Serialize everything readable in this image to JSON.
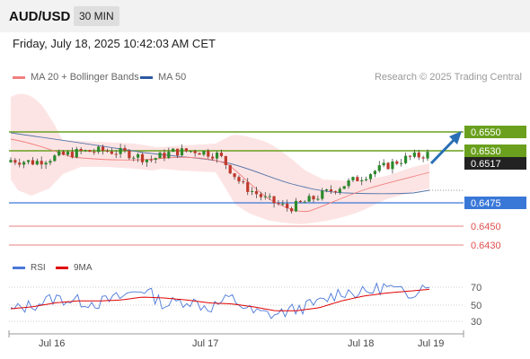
{
  "header": {
    "symbol": "AUD/USD",
    "timeframe": "30 MIN"
  },
  "datetime": "Friday, July 18, 2025 10:42:03 AM CET",
  "legend": {
    "items": [
      {
        "label": "MA 20 + Bollinger Bands",
        "color": "#f08080"
      },
      {
        "label": "MA 50",
        "color": "#2c5aa0"
      }
    ],
    "credit": "Research © 2025 Trading Central"
  },
  "rsi_legend": {
    "items": [
      {
        "label": "RSI",
        "color": "#4a78d8"
      },
      {
        "label": "9MA",
        "color": "#e00000"
      }
    ]
  },
  "colors": {
    "resistance": "#6aa01e",
    "support_primary": "#3a78d8",
    "support_secondary": "#e88080",
    "current": "#222222",
    "arrow": "#2a6fb5"
  },
  "price_tags": {
    "resistance": [
      "0.6550",
      "0.6530"
    ],
    "current": "0.6517",
    "support": [
      "0.6475",
      "0.6450",
      "0.6430"
    ]
  },
  "x_axis_labels": [
    "Jul 16",
    "Jul 17",
    "Jul 18",
    "Jul 19"
  ],
  "rsi_axis_labels": [
    "70",
    "50",
    "30"
  ],
  "chart_data": {
    "type": "line",
    "series": [
      {
        "name": "MA 20 + Bollinger Bands",
        "values": [
          0.6515,
          0.6514,
          0.6515,
          0.6517,
          0.6518,
          0.6518,
          0.6518,
          0.6511,
          0.6505,
          0.6497,
          0.6487,
          0.6483,
          0.6484,
          0.649,
          0.6496,
          0.6502,
          0.6505
        ]
      },
      {
        "name": "MA 50",
        "values": [
          0.6538,
          0.653,
          0.6525,
          0.6522,
          0.652,
          0.6518,
          0.6516,
          0.6513,
          0.6505,
          0.6497,
          0.649,
          0.6486,
          0.6484,
          0.6483,
          0.6483,
          0.6484,
          0.6486
        ]
      }
    ],
    "price_path": [
      0.6512,
      0.651,
      0.6515,
      0.6519,
      0.652,
      0.6518,
      0.6512,
      0.6519,
      0.652,
      0.6516,
      0.649,
      0.6478,
      0.647,
      0.6478,
      0.6487,
      0.6496,
      0.6505,
      0.6513,
      0.6517
    ],
    "price_ylim": [
      0.6425,
      0.6565
    ],
    "levels": [
      0.655,
      0.653,
      0.6475,
      0.645,
      0.643
    ],
    "current_price": 0.6517,
    "rsi": [
      42,
      48,
      55,
      52,
      50,
      56,
      65,
      48,
      53,
      45,
      55,
      40,
      38,
      44,
      50,
      62,
      60,
      67,
      58,
      72
    ],
    "rsi_9ma": [
      44,
      46,
      50,
      52,
      52,
      53,
      56,
      55,
      53,
      50,
      49,
      46,
      42,
      42,
      45,
      52,
      57,
      60,
      62,
      64
    ],
    "rsi_ylim": [
      20,
      80
    ],
    "rsi_levels": [
      70,
      50,
      30
    ]
  }
}
